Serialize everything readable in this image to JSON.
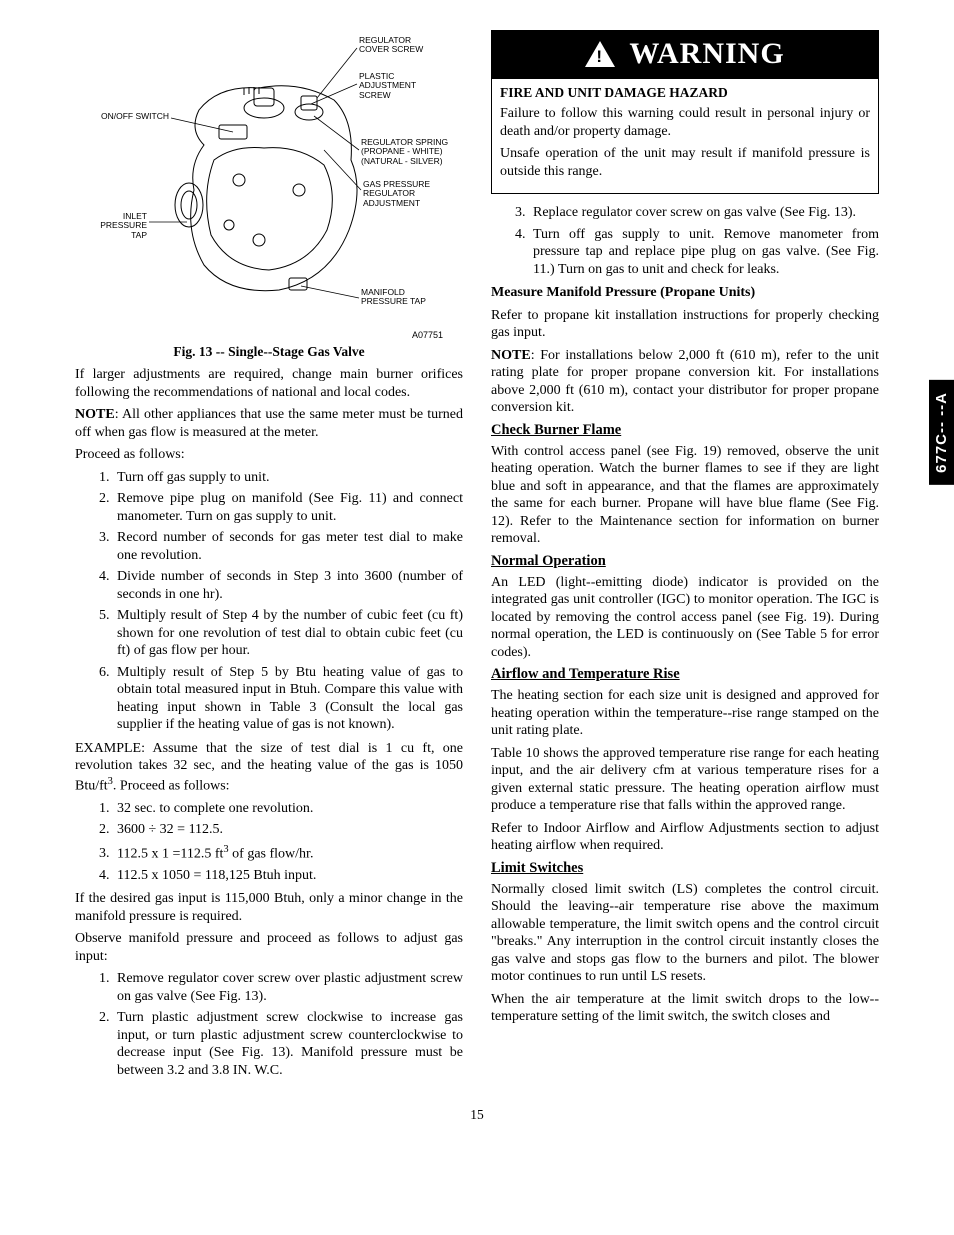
{
  "sideTab": "677C-- --A",
  "pageNum": "15",
  "figure": {
    "caption": "Fig. 13 -- Single--Stage Gas Valve",
    "code": "A07751",
    "labels": {
      "regCover": "REGULATOR\nCOVER SCREW",
      "plasticAdj": "PLASTIC\nADJUSTMENT\nSCREW",
      "onOff": "ON/OFF SWITCH",
      "regSpring": "REGULATOR SPRING\n(PROPANE - WHITE)\n(NATURAL - SILVER)",
      "gasPress": "GAS PRESSURE\nREGULATOR\nADJUSTMENT",
      "inlet": "INLET\nPRESSURE TAP",
      "manifold": "MANIFOLD\nPRESSURE TAP"
    }
  },
  "left": {
    "p1": "If larger adjustments are required, change main burner orifices following the recommendations of national and local codes.",
    "noteLead": "NOTE",
    "note1": ":   All other appliances that use the same meter must be turned off when gas flow is measured at the meter.",
    "proceed": "Proceed as follows:",
    "steps1": [
      "Turn off gas supply to unit.",
      "Remove pipe plug on manifold (See Fig. 11) and connect manometer. Turn on gas supply to unit.",
      "Record number of seconds for gas meter test dial to make one revolution.",
      "Divide number of seconds in Step 3 into 3600 (number of seconds in one hr).",
      "Multiply result of Step 4 by the number of cubic feet (cu ft) shown for one revolution of test dial to obtain cubic feet (cu ft) of gas flow per hour.",
      "Multiply result of Step 5 by Btu heating value of gas to obtain total measured input in Btuh. Compare this value with heating input shown in Table 3 (Consult the local gas supplier if the heating value of gas is not known)."
    ],
    "example": "EXAMPLE: Assume that the size of test dial is 1 cu ft, one revolution takes 32 sec, and the heating value of the gas is 1050 Btu/ft",
    "exampleTail": ". Proceed as follows:",
    "steps2a": "32 sec. to complete one revolution.",
    "steps2b": "3600 ÷ 32 = 112.5.",
    "steps2c_a": "112.5 x 1 =112.5 ft",
    "steps2c_b": " of gas flow/hr.",
    "steps2d": "112.5 x 1050 = 118,125 Btuh input.",
    "p2": "If the desired gas input is 115,000 Btuh, only a minor change in the manifold pressure is required.",
    "p3": "Observe manifold pressure and proceed as follows to adjust gas input:",
    "steps3": [
      "Remove regulator cover screw over plastic adjustment screw on gas valve (See Fig. 13).",
      "Turn plastic adjustment screw clockwise to increase gas input, or turn plastic adjustment screw counterclockwise to decrease input (See Fig. 13). Manifold pressure must be between 3.2 and 3.8 IN. W.C."
    ]
  },
  "right": {
    "warnTitle": "WARNING",
    "hazard": "FIRE AND UNIT DAMAGE HAZARD",
    "warnP1": "Failure to follow this warning could result in personal injury or death and/or property damage.",
    "warnP2": "Unsafe operation of the unit may result if manifold pressure is outside this range.",
    "steps4": [
      "Replace regulator cover screw on gas valve (See Fig. 13).",
      "Turn off gas supply to unit. Remove manometer from pressure tap and replace pipe plug on gas valve. (See Fig. 11.) Turn on gas to unit and check for leaks."
    ],
    "measureHead": "Measure Manifold Pressure (Propane Units)",
    "measureP": "Refer to propane kit installation instructions for properly checking gas input.",
    "note2": ": For installations below 2,000 ft (610 m), refer to the unit rating plate for proper propane conversion kit. For installations above 2,000 ft (610 m), contact your distributor for proper propane conversion kit.",
    "h1": "Check Burner Flame",
    "h1p": "With control access panel (see Fig. 19) removed, observe the unit heating operation. Watch the burner flames to see if they are light blue and soft in appearance, and that the flames are approximately the same for each burner. Propane will have blue flame (See Fig. 12). Refer to the Maintenance section for information on burner removal.",
    "h2": "Normal Operation",
    "h2p": "An LED (light--emitting diode) indicator is provided on the integrated gas unit controller (IGC) to monitor operation. The IGC is located by removing the control access panel (see Fig. 19). During normal operation, the LED is continuously on (See Table 5 for error codes).",
    "h3": "Airflow and Temperature Rise",
    "h3p1": "The heating section for each size unit is designed and approved for heating operation within the temperature--rise range stamped on the unit rating plate.",
    "h3p2": "Table 10 shows the approved temperature rise range for each heating input, and the air delivery cfm at various temperature rises for a given external static pressure. The heating operation airflow must produce a temperature rise that falls within the approved range.",
    "h3p3": "Refer to Indoor Airflow and Airflow Adjustments section to adjust heating airflow when required.",
    "h4": "Limit Switches",
    "h4p1": "Normally closed limit switch (LS) completes the control circuit. Should the leaving--air temperature rise above the maximum allowable temperature, the limit switch opens and the control circuit \"breaks.\" Any interruption in the  control circuit instantly closes the gas valve and stops gas flow to the burners and pilot. The blower motor continues to run until LS resets.",
    "h4p2": "When the air temperature at the limit switch drops to the low--temperature setting of the limit switch, the switch closes and"
  }
}
